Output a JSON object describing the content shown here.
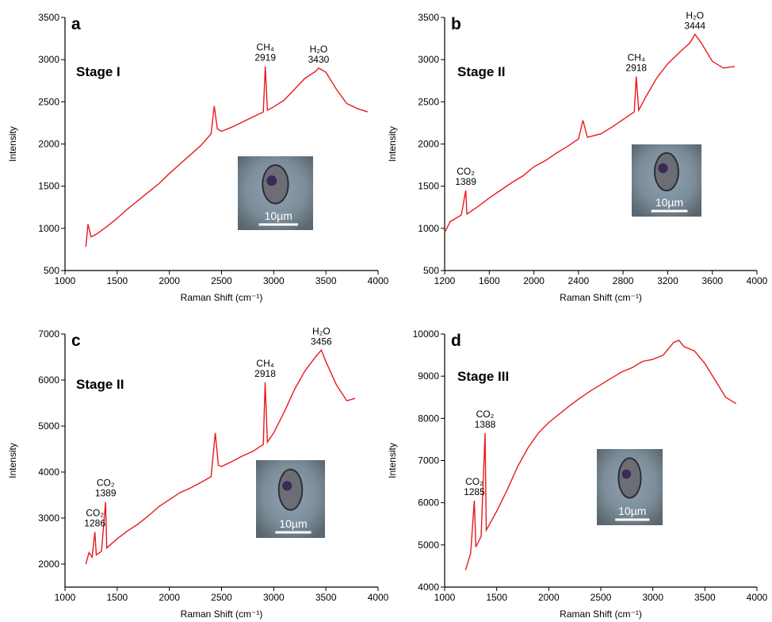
{
  "chart_data": [
    {
      "type": "line",
      "panel": "a",
      "subtitle": "Stage I",
      "xlabel": "Raman Shift (cm⁻¹)",
      "ylabel": "Intensity",
      "xlim": [
        1000,
        4000
      ],
      "xticks": [
        1000,
        1500,
        2000,
        2500,
        3000,
        3500,
        4000
      ],
      "ylim": [
        500,
        3500
      ],
      "yticks": [
        500,
        1000,
        1500,
        2000,
        2500,
        3000,
        3500
      ],
      "inset_label": "10µm",
      "annotations": [
        {
          "label": "CH₄",
          "value": 2919
        },
        {
          "label": "H₂O",
          "value": 3430
        }
      ],
      "series": [
        {
          "color": "#e8191b",
          "x": [
            1200,
            1220,
            1250,
            1300,
            1400,
            1500,
            1600,
            1700,
            1800,
            1900,
            2000,
            2100,
            2200,
            2300,
            2400,
            2430,
            2460,
            2500,
            2600,
            2700,
            2800,
            2900,
            2919,
            2940,
            3000,
            3100,
            3200,
            3300,
            3400,
            3430,
            3500,
            3600,
            3700,
            3800,
            3900
          ],
          "values": [
            780,
            1050,
            900,
            930,
            1020,
            1120,
            1230,
            1330,
            1430,
            1530,
            1650,
            1760,
            1870,
            1980,
            2120,
            2450,
            2180,
            2150,
            2200,
            2260,
            2320,
            2380,
            2920,
            2400,
            2440,
            2520,
            2650,
            2780,
            2860,
            2900,
            2850,
            2650,
            2480,
            2420,
            2380
          ]
        }
      ]
    },
    {
      "type": "line",
      "panel": "b",
      "subtitle": "Stage II",
      "xlabel": "Raman Shift (cm⁻¹)",
      "ylabel": "Intensity",
      "xlim": [
        1200,
        4000
      ],
      "xticks": [
        1200,
        1600,
        2000,
        2400,
        2800,
        3200,
        3600,
        4000
      ],
      "ylim": [
        500,
        3500
      ],
      "yticks": [
        500,
        1000,
        1500,
        2000,
        2500,
        3000,
        3500
      ],
      "inset_label": "10µm",
      "annotations": [
        {
          "label": "CO₂",
          "value": 1389
        },
        {
          "label": "CH₄",
          "value": 2918
        },
        {
          "label": "H₂O",
          "value": 3444
        }
      ],
      "series": [
        {
          "color": "#e8191b",
          "x": [
            1200,
            1250,
            1300,
            1350,
            1389,
            1400,
            1500,
            1600,
            1700,
            1800,
            1900,
            2000,
            2100,
            2200,
            2300,
            2400,
            2440,
            2480,
            2600,
            2700,
            2800,
            2900,
            2918,
            2940,
            3000,
            3100,
            3200,
            3300,
            3400,
            3444,
            3500,
            3600,
            3700,
            3800
          ],
          "values": [
            950,
            1080,
            1120,
            1160,
            1450,
            1170,
            1260,
            1360,
            1450,
            1540,
            1620,
            1730,
            1800,
            1890,
            1970,
            2060,
            2280,
            2080,
            2120,
            2200,
            2290,
            2380,
            2800,
            2400,
            2550,
            2780,
            2950,
            3080,
            3200,
            3300,
            3200,
            2980,
            2900,
            2920
          ]
        }
      ]
    },
    {
      "type": "line",
      "panel": "c",
      "subtitle": "Stage II",
      "xlabel": "Raman Shift (cm⁻¹)",
      "ylabel": "Intensity",
      "xlim": [
        1000,
        4000
      ],
      "xticks": [
        1000,
        1500,
        2000,
        2500,
        3000,
        3500,
        4000
      ],
      "ylim": [
        1500,
        7000
      ],
      "yticks": [
        2000,
        3000,
        4000,
        5000,
        6000,
        7000
      ],
      "inset_label": "10µm",
      "annotations": [
        {
          "label": "CO₂",
          "value": 1286
        },
        {
          "label": "CO₂",
          "value": 1389
        },
        {
          "label": "CH₄",
          "value": 2918
        },
        {
          "label": "H₂O",
          "value": 3456
        }
      ],
      "series": [
        {
          "color": "#e8191b",
          "x": [
            1200,
            1230,
            1260,
            1286,
            1300,
            1350,
            1389,
            1400,
            1500,
            1600,
            1700,
            1800,
            1900,
            2000,
            2100,
            2200,
            2300,
            2400,
            2440,
            2470,
            2500,
            2600,
            2700,
            2800,
            2900,
            2918,
            2940,
            3000,
            3100,
            3200,
            3300,
            3400,
            3456,
            3500,
            3600,
            3700,
            3780
          ],
          "values": [
            2000,
            2250,
            2150,
            2700,
            2200,
            2280,
            3350,
            2350,
            2550,
            2720,
            2870,
            3050,
            3250,
            3400,
            3550,
            3650,
            3770,
            3900,
            4850,
            4150,
            4120,
            4230,
            4350,
            4450,
            4600,
            5950,
            4650,
            4850,
            5300,
            5800,
            6200,
            6500,
            6650,
            6400,
            5900,
            5550,
            5600
          ]
        }
      ]
    },
    {
      "type": "line",
      "panel": "d",
      "subtitle": "Stage III",
      "xlabel": "Raman Shift (cm⁻¹)",
      "ylabel": "Intensity",
      "xlim": [
        1000,
        4000
      ],
      "xticks": [
        1000,
        1500,
        2000,
        2500,
        3000,
        3500,
        4000
      ],
      "ylim": [
        4000,
        10000
      ],
      "yticks": [
        4000,
        5000,
        6000,
        7000,
        8000,
        9000,
        10000
      ],
      "inset_label": "10µm",
      "annotations": [
        {
          "label": "CO₂",
          "value": 1285
        },
        {
          "label": "CO₂",
          "value": 1388
        }
      ],
      "series": [
        {
          "color": "#e8191b",
          "x": [
            1200,
            1250,
            1285,
            1300,
            1350,
            1388,
            1400,
            1500,
            1600,
            1700,
            1800,
            1900,
            2000,
            2100,
            2200,
            2300,
            2400,
            2500,
            2600,
            2700,
            2800,
            2900,
            3000,
            3100,
            3200,
            3250,
            3300,
            3400,
            3500,
            3600,
            3700,
            3800
          ],
          "values": [
            4400,
            4800,
            6050,
            4950,
            5200,
            7650,
            5350,
            5800,
            6300,
            6850,
            7300,
            7650,
            7900,
            8100,
            8300,
            8480,
            8650,
            8800,
            8950,
            9100,
            9200,
            9350,
            9400,
            9500,
            9800,
            9850,
            9700,
            9600,
            9300,
            8900,
            8500,
            8350
          ]
        }
      ]
    }
  ]
}
